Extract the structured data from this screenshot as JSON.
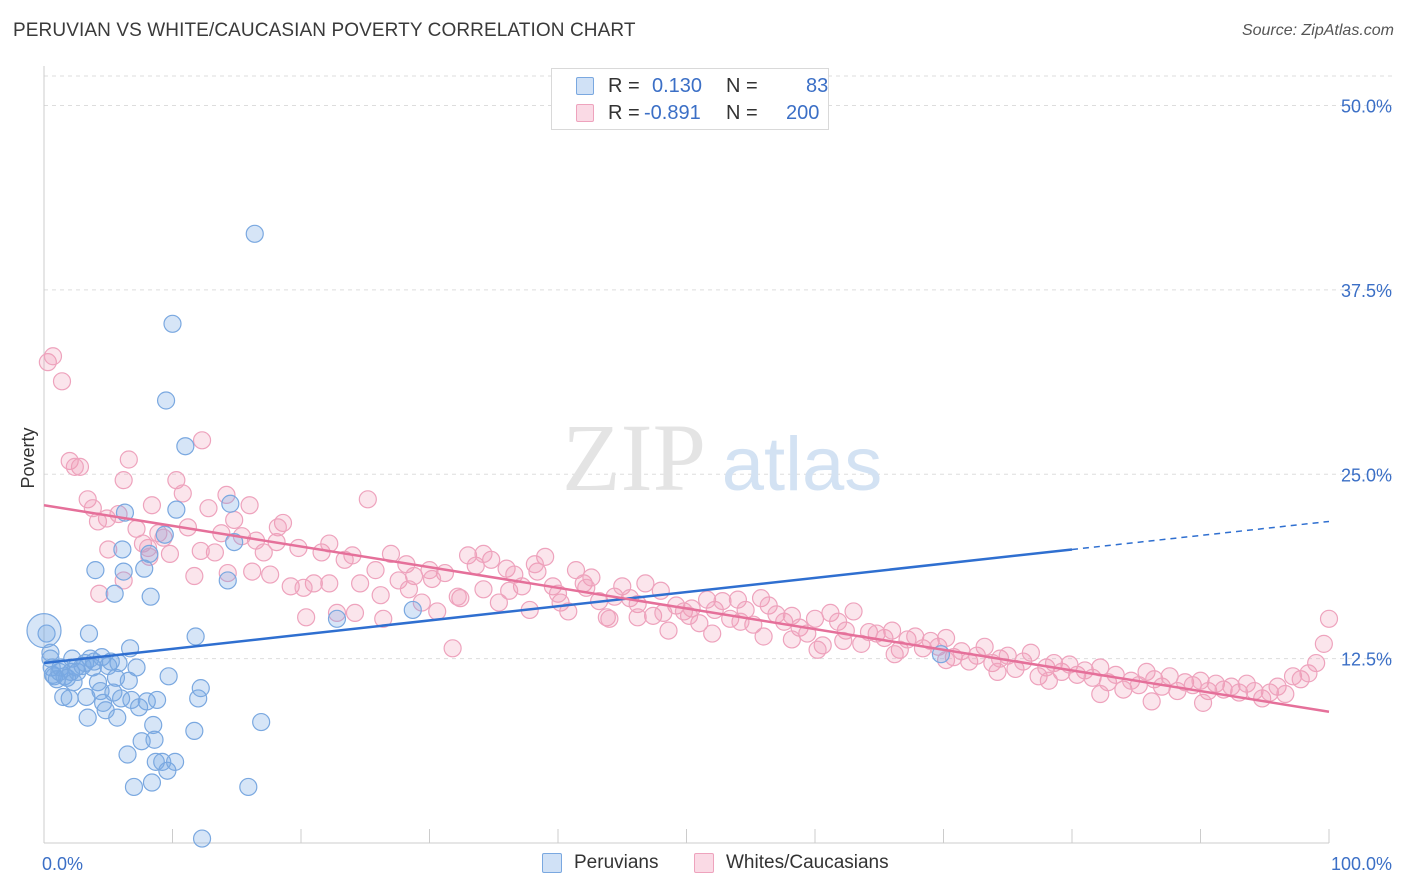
{
  "header": {
    "title": "PERUVIAN VS WHITE/CAUCASIAN POVERTY CORRELATION CHART",
    "source": "Source: ZipAtlas.com"
  },
  "watermark": {
    "zip": "ZIP",
    "atlas": "atlas"
  },
  "legend": {
    "rows": [
      {
        "r_label": "R =",
        "r_value": "0.130",
        "n_label": "N =",
        "n_value": "83"
      },
      {
        "r_label": "R =",
        "r_value": "-0.891",
        "n_label": "N =",
        "n_value": "200"
      }
    ]
  },
  "bottom_legend": {
    "items": [
      {
        "label": "Peruvians"
      },
      {
        "label": "Whites/Caucasians"
      }
    ]
  },
  "colors": {
    "blue_fill": "rgba(120,170,230,0.30)",
    "blue_stroke": "#7aa8e0",
    "blue_line": "#2f6fd0",
    "pink_fill": "rgba(240,150,180,0.25)",
    "pink_stroke": "#eea3bd",
    "pink_line": "#e5709a",
    "axis_label": "#3b6fc6",
    "grid": "#dddddd"
  },
  "chart_data": {
    "type": "scatter",
    "ylabel": "Poverty",
    "xlim": [
      0,
      100
    ],
    "ylim": [
      0,
      50
    ],
    "x_tick_labels": [
      "0.0%",
      "100.0%"
    ],
    "y_ticks": [
      12.5,
      25.0,
      37.5,
      50.0
    ],
    "y_tick_labels": [
      "12.5%",
      "25.0%",
      "37.5%",
      "50.0%"
    ],
    "grid": true,
    "legend_position": "top-center",
    "series": [
      {
        "name": "Peruvians",
        "R": 0.13,
        "N": 83,
        "trend": {
          "x": [
            0,
            80
          ],
          "y": [
            12.2,
            19.9
          ]
        },
        "trend_dashed": {
          "x": [
            80,
            100
          ],
          "y": [
            19.9,
            21.8
          ]
        },
        "points": [
          [
            0.2,
            14.2
          ],
          [
            0.5,
            12.9
          ],
          [
            0.5,
            12.5
          ],
          [
            0.6,
            11.9
          ],
          [
            0.7,
            11.4
          ],
          [
            0.8,
            11.3
          ],
          [
            1.0,
            11.1
          ],
          [
            1.2,
            11.6
          ],
          [
            1.3,
            11.9
          ],
          [
            1.5,
            9.9
          ],
          [
            1.6,
            11.3
          ],
          [
            1.8,
            11.2
          ],
          [
            2.0,
            9.8
          ],
          [
            2.1,
            11.6
          ],
          [
            2.2,
            12.5
          ],
          [
            2.3,
            10.9
          ],
          [
            2.5,
            11.9
          ],
          [
            2.6,
            11.6
          ],
          [
            3.0,
            12.0
          ],
          [
            3.2,
            12.2
          ],
          [
            3.3,
            9.9
          ],
          [
            3.4,
            8.5
          ],
          [
            3.5,
            14.2
          ],
          [
            3.6,
            12.5
          ],
          [
            3.8,
            11.9
          ],
          [
            3.9,
            12.3
          ],
          [
            4.0,
            18.5
          ],
          [
            4.2,
            10.9
          ],
          [
            4.4,
            10.3
          ],
          [
            4.5,
            12.6
          ],
          [
            4.6,
            9.5
          ],
          [
            4.8,
            9.0
          ],
          [
            5.0,
            12.0
          ],
          [
            5.2,
            12.3
          ],
          [
            5.4,
            10.2
          ],
          [
            5.5,
            16.9
          ],
          [
            5.6,
            11.2
          ],
          [
            5.7,
            8.5
          ],
          [
            5.8,
            12.2
          ],
          [
            6.0,
            9.8
          ],
          [
            6.1,
            19.9
          ],
          [
            6.2,
            18.4
          ],
          [
            6.3,
            22.4
          ],
          [
            6.5,
            6.0
          ],
          [
            6.6,
            11.0
          ],
          [
            6.7,
            13.2
          ],
          [
            6.8,
            9.7
          ],
          [
            7.0,
            3.8
          ],
          [
            7.2,
            11.9
          ],
          [
            7.4,
            9.2
          ],
          [
            7.6,
            6.9
          ],
          [
            7.8,
            18.6
          ],
          [
            8.0,
            9.6
          ],
          [
            8.2,
            19.6
          ],
          [
            8.3,
            16.7
          ],
          [
            8.4,
            4.1
          ],
          [
            8.5,
            8.0
          ],
          [
            8.6,
            7.0
          ],
          [
            8.7,
            5.5
          ],
          [
            8.8,
            9.7
          ],
          [
            9.2,
            5.5
          ],
          [
            9.4,
            20.9
          ],
          [
            9.5,
            30.0
          ],
          [
            9.6,
            4.9
          ],
          [
            9.7,
            11.3
          ],
          [
            10.0,
            35.2
          ],
          [
            10.2,
            5.5
          ],
          [
            10.3,
            22.6
          ],
          [
            11.0,
            26.9
          ],
          [
            11.7,
            7.6
          ],
          [
            11.8,
            14.0
          ],
          [
            12.0,
            9.8
          ],
          [
            12.2,
            10.5
          ],
          [
            12.3,
            0.3
          ],
          [
            14.3,
            17.8
          ],
          [
            14.5,
            23.0
          ],
          [
            14.8,
            20.4
          ],
          [
            15.9,
            3.8
          ],
          [
            16.4,
            41.3
          ],
          [
            16.9,
            8.2
          ],
          [
            22.8,
            15.2
          ],
          [
            28.7,
            15.8
          ],
          [
            69.8,
            12.8
          ]
        ]
      },
      {
        "name": "Whites/Caucasians",
        "R": -0.891,
        "N": 200,
        "trend": {
          "x": [
            0,
            100
          ],
          "y": [
            22.9,
            8.9
          ]
        },
        "points": [
          [
            0.3,
            32.6
          ],
          [
            0.7,
            33.0
          ],
          [
            1.4,
            31.3
          ],
          [
            2.0,
            25.9
          ],
          [
            2.8,
            25.5
          ],
          [
            3.4,
            23.3
          ],
          [
            3.8,
            22.7
          ],
          [
            4.3,
            16.9
          ],
          [
            4.9,
            22.0
          ],
          [
            5.0,
            19.9
          ],
          [
            5.8,
            22.3
          ],
          [
            6.2,
            17.8
          ],
          [
            6.6,
            26.0
          ],
          [
            7.2,
            21.3
          ],
          [
            7.7,
            20.3
          ],
          [
            8.1,
            20.0
          ],
          [
            8.4,
            22.9
          ],
          [
            8.9,
            21.0
          ],
          [
            9.3,
            20.7
          ],
          [
            9.8,
            19.6
          ],
          [
            10.3,
            24.6
          ],
          [
            10.8,
            23.7
          ],
          [
            11.2,
            21.4
          ],
          [
            11.7,
            18.1
          ],
          [
            12.3,
            27.3
          ],
          [
            12.8,
            22.7
          ],
          [
            13.3,
            19.7
          ],
          [
            13.8,
            21.0
          ],
          [
            14.3,
            18.3
          ],
          [
            14.8,
            21.9
          ],
          [
            15.4,
            20.8
          ],
          [
            16.0,
            22.9
          ],
          [
            16.5,
            20.5
          ],
          [
            17.1,
            19.7
          ],
          [
            17.6,
            18.2
          ],
          [
            18.1,
            20.4
          ],
          [
            18.6,
            21.7
          ],
          [
            19.2,
            17.4
          ],
          [
            19.8,
            20.0
          ],
          [
            20.4,
            15.3
          ],
          [
            21.0,
            17.6
          ],
          [
            21.6,
            19.7
          ],
          [
            22.2,
            17.6
          ],
          [
            22.8,
            15.6
          ],
          [
            23.4,
            19.2
          ],
          [
            24.0,
            19.5
          ],
          [
            24.6,
            17.6
          ],
          [
            25.2,
            23.3
          ],
          [
            25.8,
            18.5
          ],
          [
            26.4,
            15.2
          ],
          [
            27.0,
            19.6
          ],
          [
            27.6,
            17.8
          ],
          [
            28.2,
            18.9
          ],
          [
            28.8,
            18.1
          ],
          [
            29.4,
            16.3
          ],
          [
            30.0,
            18.5
          ],
          [
            30.6,
            15.7
          ],
          [
            31.2,
            18.3
          ],
          [
            31.8,
            13.2
          ],
          [
            32.4,
            16.6
          ],
          [
            33.0,
            19.5
          ],
          [
            33.6,
            18.8
          ],
          [
            34.2,
            17.2
          ],
          [
            34.8,
            19.2
          ],
          [
            35.4,
            16.3
          ],
          [
            36.0,
            18.6
          ],
          [
            36.6,
            18.2
          ],
          [
            37.2,
            17.4
          ],
          [
            37.8,
            15.8
          ],
          [
            38.4,
            18.4
          ],
          [
            39.0,
            19.4
          ],
          [
            39.6,
            17.4
          ],
          [
            40.2,
            16.3
          ],
          [
            40.8,
            15.7
          ],
          [
            41.4,
            18.5
          ],
          [
            42.0,
            17.6
          ],
          [
            42.6,
            18.0
          ],
          [
            43.2,
            16.4
          ],
          [
            43.8,
            15.3
          ],
          [
            44.4,
            16.7
          ],
          [
            45.0,
            17.4
          ],
          [
            45.6,
            16.6
          ],
          [
            46.2,
            16.2
          ],
          [
            46.8,
            17.6
          ],
          [
            47.4,
            15.4
          ],
          [
            48.0,
            17.1
          ],
          [
            48.6,
            14.4
          ],
          [
            49.2,
            16.1
          ],
          [
            49.8,
            15.7
          ],
          [
            50.4,
            15.9
          ],
          [
            51.0,
            14.9
          ],
          [
            51.6,
            16.5
          ],
          [
            52.2,
            15.8
          ],
          [
            52.8,
            16.4
          ],
          [
            53.4,
            15.2
          ],
          [
            54.0,
            16.5
          ],
          [
            54.6,
            15.8
          ],
          [
            55.2,
            14.8
          ],
          [
            55.8,
            16.6
          ],
          [
            56.4,
            16.1
          ],
          [
            57.0,
            15.5
          ],
          [
            57.6,
            15.0
          ],
          [
            58.2,
            15.4
          ],
          [
            58.8,
            14.6
          ],
          [
            59.4,
            14.2
          ],
          [
            60.0,
            15.2
          ],
          [
            60.6,
            13.4
          ],
          [
            61.2,
            15.6
          ],
          [
            61.8,
            15.0
          ],
          [
            62.4,
            14.4
          ],
          [
            63.0,
            15.7
          ],
          [
            63.6,
            13.5
          ],
          [
            64.2,
            14.3
          ],
          [
            64.8,
            14.2
          ],
          [
            65.4,
            13.9
          ],
          [
            66.0,
            14.4
          ],
          [
            66.6,
            13.1
          ],
          [
            67.2,
            13.8
          ],
          [
            67.8,
            14.0
          ],
          [
            68.4,
            13.2
          ],
          [
            69.0,
            13.7
          ],
          [
            69.6,
            13.3
          ],
          [
            70.2,
            13.9
          ],
          [
            70.8,
            12.6
          ],
          [
            71.4,
            13.0
          ],
          [
            72.0,
            12.3
          ],
          [
            72.6,
            12.7
          ],
          [
            73.2,
            13.3
          ],
          [
            73.8,
            12.2
          ],
          [
            74.4,
            12.5
          ],
          [
            75.0,
            12.7
          ],
          [
            75.6,
            11.8
          ],
          [
            76.2,
            12.3
          ],
          [
            76.8,
            12.9
          ],
          [
            77.4,
            11.3
          ],
          [
            78.0,
            11.9
          ],
          [
            78.6,
            12.2
          ],
          [
            79.2,
            11.6
          ],
          [
            79.8,
            12.1
          ],
          [
            80.4,
            11.4
          ],
          [
            81.0,
            11.7
          ],
          [
            81.6,
            11.2
          ],
          [
            82.2,
            11.9
          ],
          [
            82.8,
            10.9
          ],
          [
            83.4,
            11.4
          ],
          [
            84.0,
            10.4
          ],
          [
            84.6,
            11.0
          ],
          [
            85.2,
            10.7
          ],
          [
            85.8,
            11.6
          ],
          [
            86.4,
            11.1
          ],
          [
            87.0,
            10.6
          ],
          [
            87.6,
            11.3
          ],
          [
            88.2,
            10.3
          ],
          [
            88.8,
            10.9
          ],
          [
            89.4,
            10.7
          ],
          [
            90.0,
            11.0
          ],
          [
            90.6,
            10.3
          ],
          [
            91.2,
            10.8
          ],
          [
            91.8,
            10.4
          ],
          [
            92.4,
            10.6
          ],
          [
            93.0,
            10.2
          ],
          [
            93.6,
            10.8
          ],
          [
            94.2,
            10.3
          ],
          [
            94.8,
            9.8
          ],
          [
            95.4,
            10.2
          ],
          [
            96.0,
            10.6
          ],
          [
            96.6,
            10.1
          ],
          [
            97.2,
            11.3
          ],
          [
            97.8,
            11.1
          ],
          [
            98.4,
            11.5
          ],
          [
            99.0,
            12.2
          ],
          [
            99.6,
            13.5
          ],
          [
            100.0,
            15.2
          ],
          [
            60.2,
            13.1
          ],
          [
            56.0,
            14.0
          ],
          [
            52.0,
            14.2
          ],
          [
            48.2,
            15.6
          ],
          [
            44.0,
            15.2
          ],
          [
            40.0,
            16.9
          ],
          [
            36.2,
            17.1
          ],
          [
            32.2,
            16.7
          ],
          [
            28.4,
            17.2
          ],
          [
            24.2,
            15.6
          ],
          [
            20.2,
            17.3
          ],
          [
            16.2,
            18.4
          ],
          [
            12.2,
            19.8
          ],
          [
            8.2,
            19.4
          ],
          [
            4.2,
            21.8
          ],
          [
            2.4,
            25.5
          ],
          [
            6.2,
            24.6
          ],
          [
            14.2,
            23.6
          ],
          [
            18.2,
            21.4
          ],
          [
            22.2,
            20.3
          ],
          [
            26.2,
            16.8
          ],
          [
            30.2,
            17.9
          ],
          [
            34.2,
            19.6
          ],
          [
            38.2,
            18.9
          ],
          [
            42.2,
            17.3
          ],
          [
            46.2,
            15.3
          ],
          [
            50.2,
            15.4
          ],
          [
            54.2,
            15.0
          ],
          [
            58.2,
            13.8
          ],
          [
            62.2,
            13.7
          ],
          [
            66.2,
            12.8
          ],
          [
            70.2,
            12.4
          ],
          [
            74.2,
            11.6
          ],
          [
            78.2,
            11.0
          ],
          [
            82.2,
            10.1
          ],
          [
            86.2,
            9.6
          ],
          [
            90.2,
            9.5
          ]
        ]
      }
    ]
  }
}
